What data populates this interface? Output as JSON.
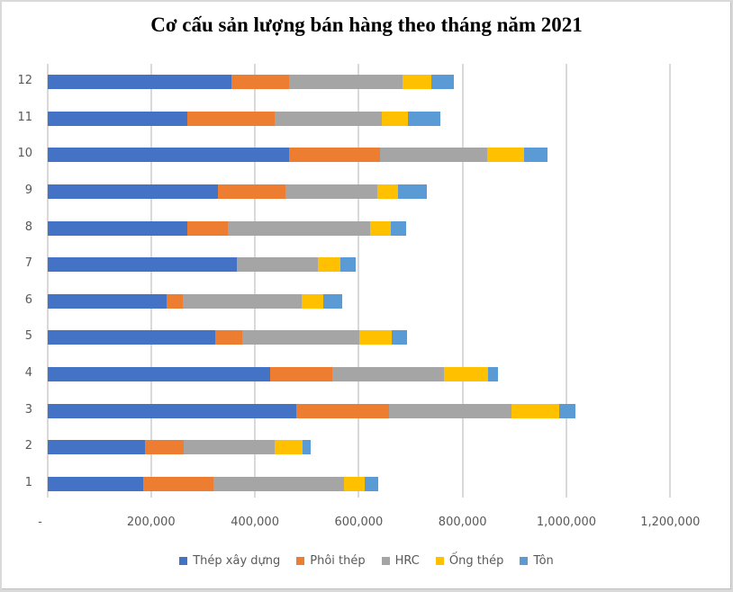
{
  "chart_data": {
    "type": "bar",
    "orientation": "horizontal",
    "stacked": true,
    "title": "Cơ cấu sản lượng bán hàng theo tháng năm 2021",
    "xlabel": "",
    "ylabel": "",
    "categories": [
      "1",
      "2",
      "3",
      "4",
      "5",
      "6",
      "7",
      "8",
      "9",
      "10",
      "11",
      "12"
    ],
    "series": [
      {
        "name": "Thép xây dựng",
        "color": "#4472C4",
        "values": [
          184700,
          188200,
          477900,
          427600,
          323500,
          229800,
          363400,
          268000,
          327000,
          465700,
          269700,
          353000
        ]
      },
      {
        "name": "Phôi thép",
        "color": "#ED7D31",
        "values": [
          135300,
          72900,
          178700,
          121400,
          52000,
          31200,
          0,
          78100,
          131800,
          175200,
          168300,
          112700
        ]
      },
      {
        "name": "HRC",
        "color": "#A5A5A5",
        "values": [
          251500,
          175200,
          237600,
          213400,
          225500,
          229000,
          157800,
          274100,
          176900,
          206400,
          206400,
          218600
        ]
      },
      {
        "name": "Ống thép",
        "color": "#FFC000",
        "values": [
          39900,
          53800,
          91900,
          86700,
          62400,
          41600,
          43400,
          39900,
          39900,
          71100,
          50300,
          53800
        ]
      },
      {
        "name": "Tôn",
        "color": "#5B9BD5",
        "values": [
          26000,
          17300,
          31200,
          19100,
          29500,
          36400,
          27800,
          29500,
          55500,
          45100,
          62400,
          43400
        ]
      }
    ],
    "xlim": [
      0,
      1200000
    ],
    "x_ticks": [
      "-",
      "200,000",
      "400,000",
      "600,000",
      "800,000",
      "1,000,000",
      "1,200,000"
    ],
    "grid": true,
    "legend_position": "bottom"
  }
}
